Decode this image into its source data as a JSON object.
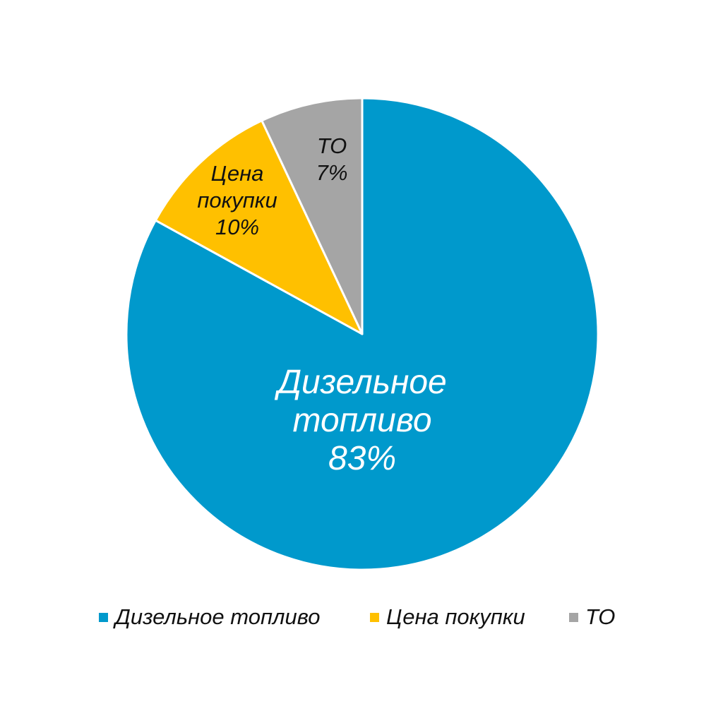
{
  "chart_data": {
    "type": "pie",
    "title": "",
    "categories": [
      "Дизельное топливо",
      "Цена покупки",
      "ТО"
    ],
    "values": [
      83,
      10,
      7
    ],
    "unit": "%",
    "colors": [
      "#0099CC",
      "#FFC000",
      "#A5A5A5"
    ],
    "data_labels": [
      {
        "lines": [
          "Дизельное",
          "топливо",
          "83%"
        ]
      },
      {
        "lines": [
          "Цена",
          "покупки",
          "10%"
        ]
      },
      {
        "lines": [
          "ТО",
          "7%"
        ]
      }
    ],
    "start_angle_deg": 0,
    "direction": "clockwise",
    "legend_position": "bottom"
  },
  "legend": {
    "items": [
      {
        "label": "Дизельное топливо",
        "color": "#0099CC"
      },
      {
        "label": "Цена покупки",
        "color": "#FFC000"
      },
      {
        "label": "ТО",
        "color": "#A5A5A5"
      }
    ]
  },
  "style": {
    "slice_border_color": "#FFFFFF",
    "background": "#FFFFFF"
  }
}
